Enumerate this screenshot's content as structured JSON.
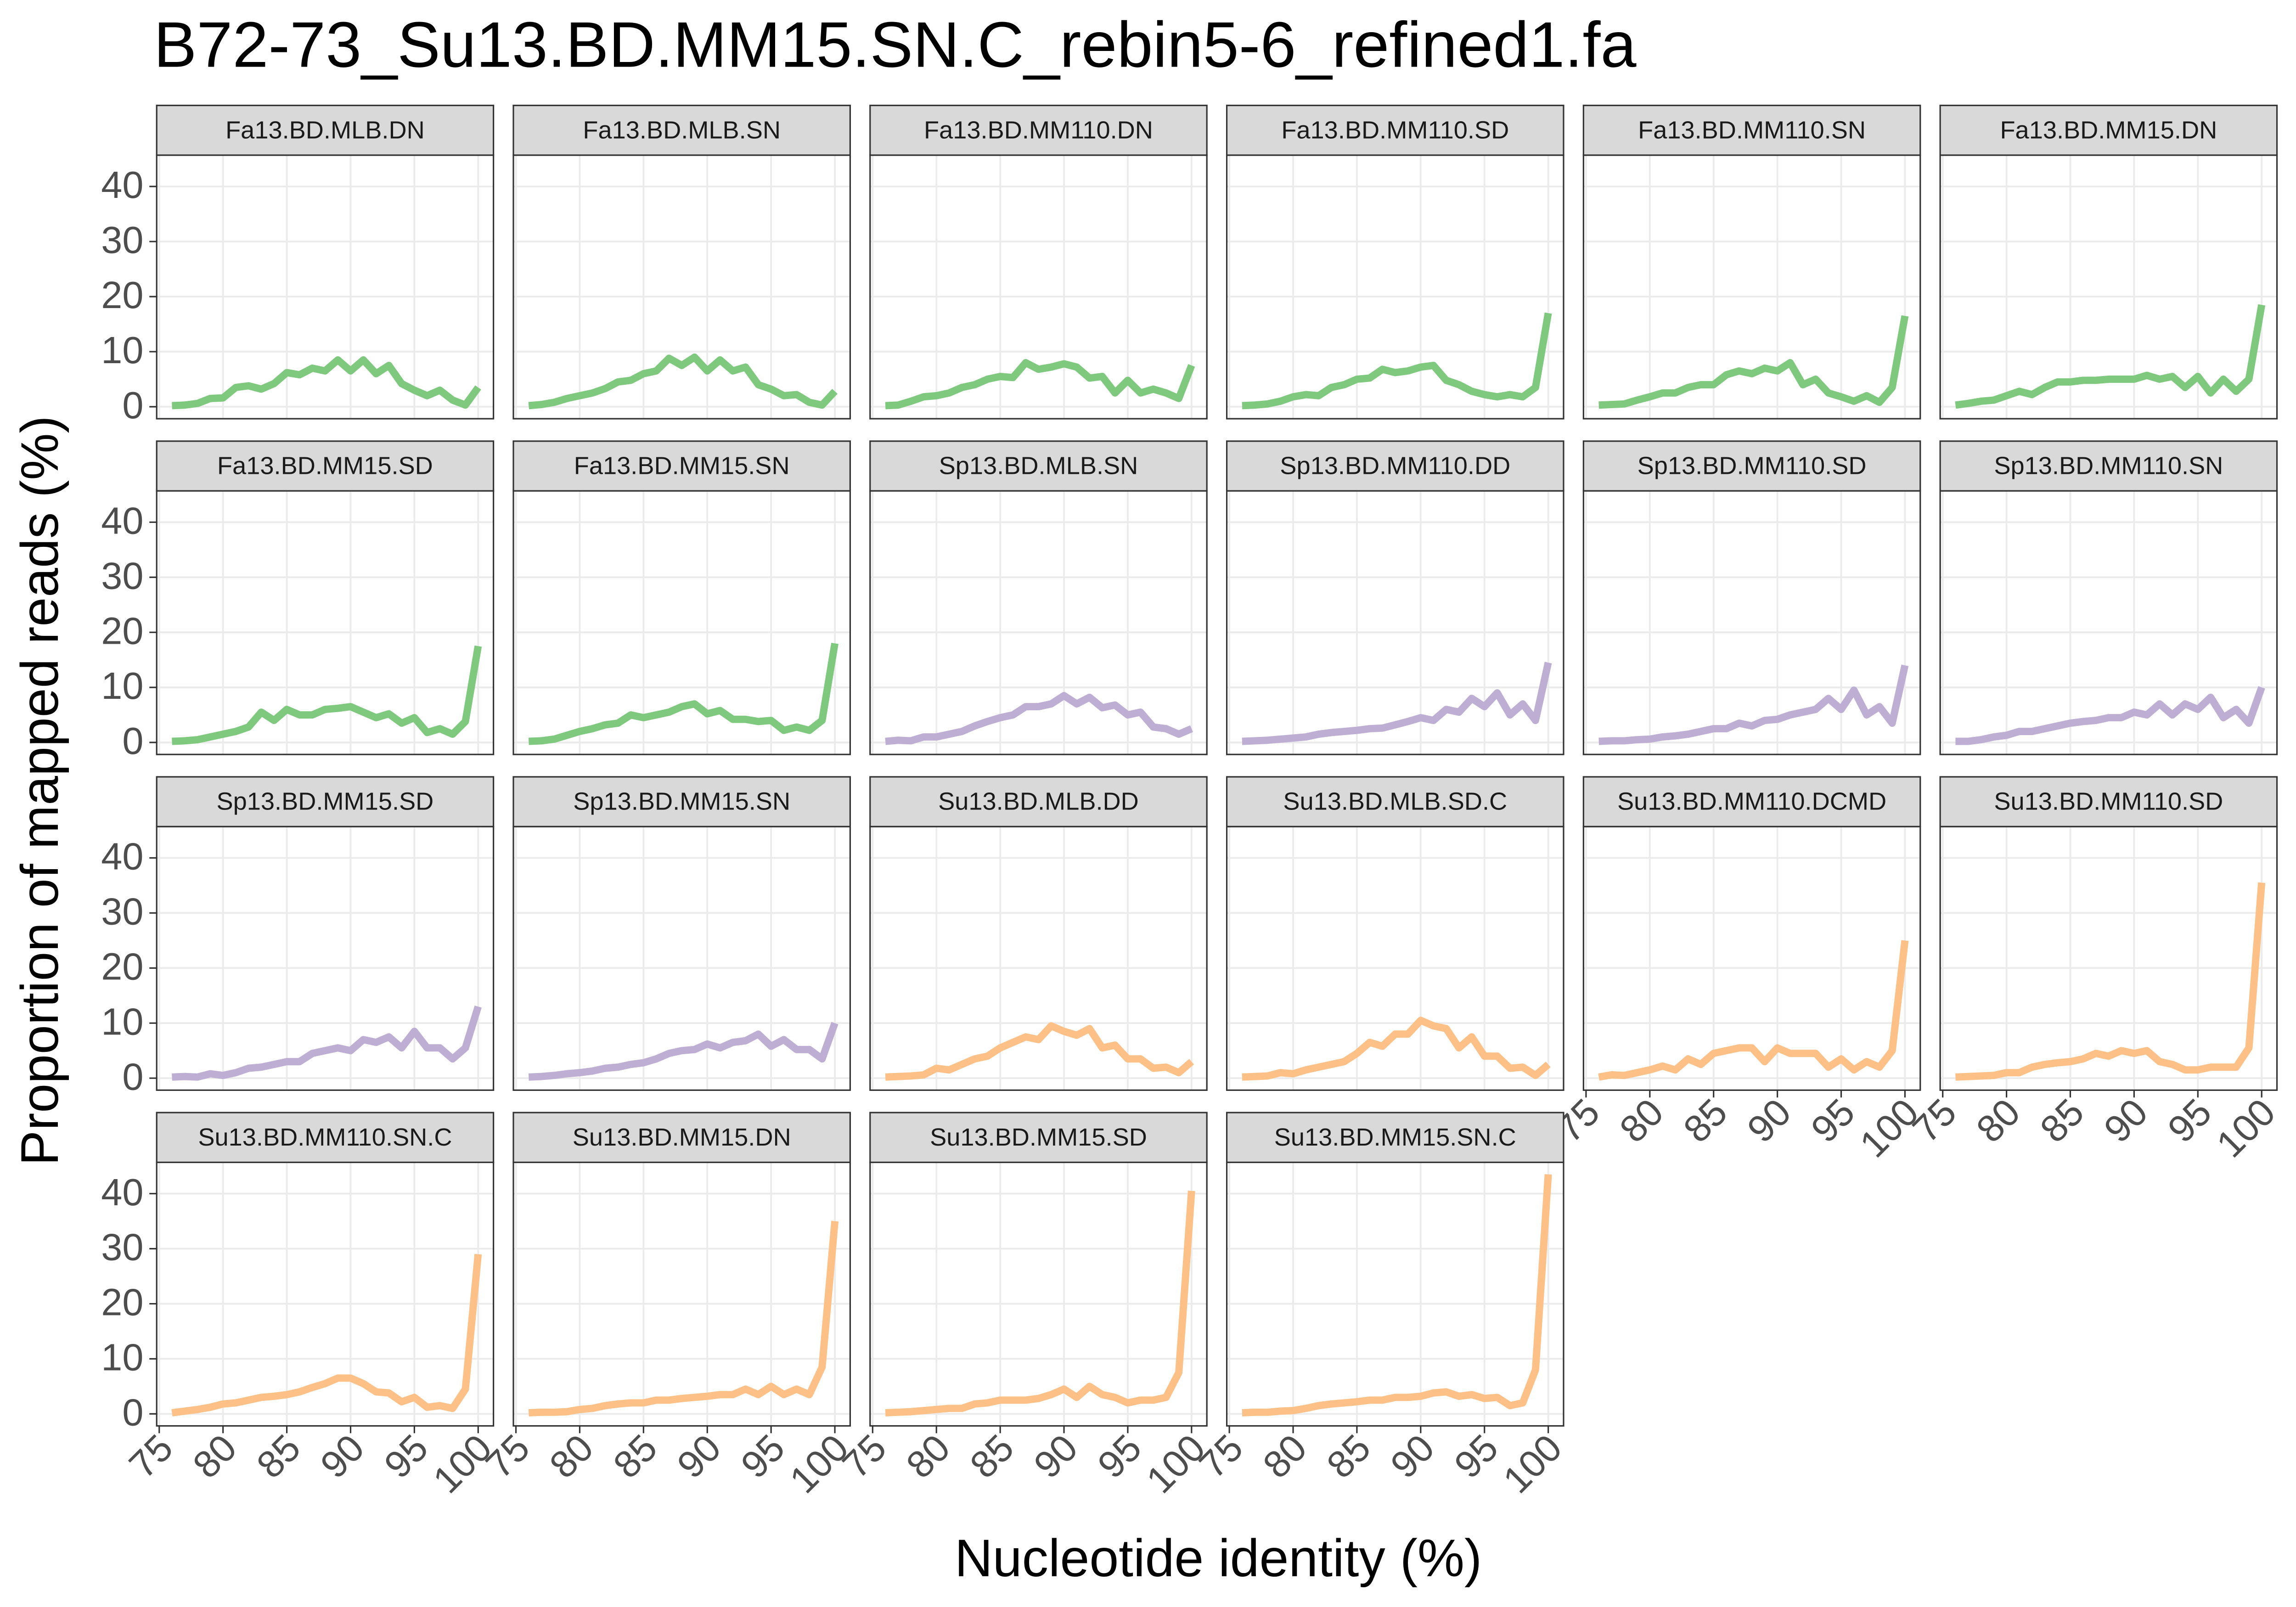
{
  "chart_data": {
    "type": "line",
    "title": "B72-73_Su13.BD.MM15.SN.C_rebin5-6_refined1.fa",
    "xlabel": "Nucleotide identity (%)",
    "ylabel": "Proportion of mapped reads (%)",
    "x": [
      76,
      77,
      78,
      79,
      80,
      81,
      82,
      83,
      84,
      85,
      86,
      87,
      88,
      89,
      90,
      91,
      92,
      93,
      94,
      95,
      96,
      97,
      98,
      99,
      100
    ],
    "xlim": [
      74.8,
      101.2
    ],
    "xticks": [
      75,
      80,
      85,
      90,
      95,
      100
    ],
    "ylim": [
      -2.18,
      45.68
    ],
    "yticks": [
      0,
      10,
      20,
      30,
      40
    ],
    "grid": true,
    "series": [
      {
        "name": "Fa13.BD.MLB.DN",
        "color": "#7fc97f",
        "values": [
          0.2,
          0.3,
          0.6,
          1.5,
          1.6,
          3.5,
          3.8,
          3.2,
          4.2,
          6.2,
          5.8,
          7,
          6.5,
          8.5,
          6.5,
          8.5,
          6,
          7.5,
          4.2,
          3,
          2,
          3,
          1.2,
          0.3,
          3.5
        ]
      },
      {
        "name": "Fa13.BD.MLB.SN",
        "color": "#7fc97f",
        "values": [
          0.2,
          0.4,
          0.8,
          1.5,
          2,
          2.5,
          3.3,
          4.5,
          4.8,
          6,
          6.5,
          8.8,
          7.5,
          9,
          6.5,
          8.5,
          6.5,
          7.2,
          4,
          3.2,
          2,
          2.2,
          0.8,
          0.3,
          2.8
        ]
      },
      {
        "name": "Fa13.BD.MM110.DN",
        "color": "#7fc97f",
        "values": [
          0.2,
          0.3,
          1,
          1.8,
          2,
          2.5,
          3.5,
          4,
          5,
          5.5,
          5.3,
          8,
          6.8,
          7.2,
          7.8,
          7.2,
          5.2,
          5.5,
          2.5,
          4.8,
          2.5,
          3.2,
          2.5,
          1.5,
          7.5
        ]
      },
      {
        "name": "Fa13.BD.MM110.SD",
        "color": "#7fc97f",
        "values": [
          0.2,
          0.3,
          0.5,
          1,
          1.8,
          2.2,
          2,
          3.5,
          4,
          5,
          5.2,
          6.8,
          6.2,
          6.5,
          7.2,
          7.5,
          4.8,
          4,
          2.8,
          2.2,
          1.8,
          2.2,
          1.8,
          3.5,
          17
        ]
      },
      {
        "name": "Fa13.BD.MM110.SN",
        "color": "#7fc97f",
        "values": [
          0.3,
          0.4,
          0.5,
          1.2,
          1.8,
          2.5,
          2.5,
          3.5,
          4,
          4,
          5.8,
          6.5,
          6,
          7,
          6.5,
          8,
          4,
          5,
          2.5,
          1.8,
          1,
          2,
          0.8,
          3.5,
          16.5
        ]
      },
      {
        "name": "Fa13.BD.MM15.DN",
        "color": "#7fc97f",
        "values": [
          0.3,
          0.6,
          1,
          1.2,
          2,
          2.8,
          2.2,
          3.5,
          4.5,
          4.5,
          4.8,
          4.8,
          5,
          5,
          5,
          5.7,
          5,
          5.5,
          3.5,
          5.5,
          2.5,
          5,
          2.8,
          5,
          18.5
        ]
      },
      {
        "name": "Fa13.BD.MM15.SD",
        "color": "#7fc97f",
        "values": [
          0.2,
          0.3,
          0.5,
          1,
          1.5,
          2,
          2.8,
          5.5,
          4,
          6,
          5,
          5,
          6,
          6.2,
          6.5,
          5.5,
          4.5,
          5.2,
          3.5,
          4.5,
          1.8,
          2.5,
          1.5,
          3.8,
          17.5
        ]
      },
      {
        "name": "Fa13.BD.MM15.SN",
        "color": "#7fc97f",
        "values": [
          0.2,
          0.3,
          0.6,
          1.3,
          2,
          2.5,
          3.2,
          3.5,
          5,
          4.5,
          5,
          5.5,
          6.5,
          7,
          5.2,
          5.8,
          4.2,
          4.2,
          3.8,
          4,
          2.2,
          2.8,
          2.2,
          4,
          18
        ]
      },
      {
        "name": "Sp13.BD.MLB.SN",
        "color": "#beaed4",
        "values": [
          0.2,
          0.4,
          0.3,
          1,
          1,
          1.5,
          2,
          3,
          3.8,
          4.5,
          5,
          6.5,
          6.5,
          7,
          8.5,
          7,
          8.2,
          6.3,
          6.8,
          5,
          5.5,
          2.8,
          2.5,
          1.5,
          2.5
        ]
      },
      {
        "name": "Sp13.BD.MM110.DD",
        "color": "#beaed4",
        "values": [
          0.2,
          0.3,
          0.4,
          0.6,
          0.8,
          1,
          1.5,
          1.8,
          2,
          2.2,
          2.5,
          2.6,
          3.2,
          3.8,
          4.5,
          4,
          6,
          5.5,
          8,
          6.5,
          9,
          5,
          7,
          4,
          14.5
        ]
      },
      {
        "name": "Sp13.BD.MM110.SD",
        "color": "#beaed4",
        "values": [
          0.2,
          0.3,
          0.3,
          0.5,
          0.6,
          1,
          1.2,
          1.5,
          2,
          2.5,
          2.5,
          3.5,
          3,
          4,
          4.2,
          5,
          5.5,
          6,
          8,
          6,
          9.5,
          5,
          6.5,
          3.5,
          14
        ]
      },
      {
        "name": "Sp13.BD.MM110.SN",
        "color": "#beaed4",
        "values": [
          0.2,
          0.2,
          0.5,
          1,
          1.3,
          2,
          2,
          2.5,
          3,
          3.5,
          3.8,
          4,
          4.5,
          4.5,
          5.5,
          5,
          7,
          5,
          7,
          6,
          8.2,
          4.5,
          6,
          3.5,
          10
        ]
      },
      {
        "name": "Sp13.BD.MM15.SD",
        "color": "#beaed4",
        "values": [
          0.2,
          0.3,
          0.2,
          0.8,
          0.5,
          1,
          1.8,
          2,
          2.5,
          3,
          3,
          4.5,
          5,
          5.5,
          5,
          7,
          6.5,
          7.5,
          5.5,
          8.5,
          5.5,
          5.5,
          3.5,
          5.5,
          13
        ]
      },
      {
        "name": "Sp13.BD.MM15.SN",
        "color": "#beaed4",
        "values": [
          0.2,
          0.3,
          0.5,
          0.8,
          1,
          1.3,
          1.8,
          2,
          2.5,
          2.8,
          3.5,
          4.5,
          5,
          5.2,
          6.2,
          5.5,
          6.5,
          6.8,
          8,
          5.8,
          7,
          5.2,
          5.2,
          3.5,
          10
        ]
      },
      {
        "name": "Su13.BD.MLB.DD",
        "color": "#fdc086",
        "values": [
          0.2,
          0.3,
          0.4,
          0.6,
          1.8,
          1.5,
          2.5,
          3.5,
          4,
          5.5,
          6.5,
          7.5,
          7,
          9.5,
          8.5,
          7.8,
          9,
          5.5,
          6,
          3.5,
          3.5,
          1.8,
          2,
          1,
          3
        ]
      },
      {
        "name": "Su13.BD.MLB.SD.C",
        "color": "#fdc086",
        "values": [
          0.2,
          0.3,
          0.4,
          1,
          0.8,
          1.5,
          2,
          2.5,
          3,
          4.5,
          6.5,
          5.8,
          8,
          8,
          10.5,
          9.5,
          9,
          5.5,
          7.5,
          4,
          4,
          1.8,
          2,
          0.5,
          2.5
        ]
      },
      {
        "name": "Su13.BD.MM110.DCMD",
        "color": "#fdc086",
        "values": [
          0.2,
          0.6,
          0.5,
          1,
          1.5,
          2.2,
          1.5,
          3.5,
          2.5,
          4.5,
          5,
          5.5,
          5.5,
          3,
          5.5,
          4.5,
          4.5,
          4.5,
          2,
          3.5,
          1.5,
          3,
          2,
          5,
          25
        ]
      },
      {
        "name": "Su13.BD.MM110.SD",
        "color": "#fdc086",
        "values": [
          0.2,
          0.3,
          0.4,
          0.5,
          1,
          1,
          2,
          2.5,
          2.8,
          3,
          3.5,
          4.5,
          4,
          5,
          4.5,
          5,
          3,
          2.5,
          1.5,
          1.5,
          2,
          2,
          2,
          5.5,
          35.5
        ]
      },
      {
        "name": "Su13.BD.MM110.SN.C",
        "color": "#fdc086",
        "values": [
          0.2,
          0.5,
          0.8,
          1.2,
          1.8,
          2,
          2.5,
          3,
          3.2,
          3.5,
          4,
          4.8,
          5.5,
          6.5,
          6.5,
          5.5,
          4,
          3.8,
          2.2,
          3,
          1.2,
          1.5,
          1,
          4.5,
          29
        ]
      },
      {
        "name": "Su13.BD.MM15.DN",
        "color": "#fdc086",
        "values": [
          0.2,
          0.3,
          0.3,
          0.4,
          0.8,
          1,
          1.5,
          1.8,
          2,
          2,
          2.5,
          2.5,
          2.8,
          3,
          3.2,
          3.5,
          3.5,
          4.5,
          3.5,
          5,
          3.5,
          4.5,
          3.5,
          8.5,
          35
        ]
      },
      {
        "name": "Su13.BD.MM15.SD",
        "color": "#fdc086",
        "values": [
          0.2,
          0.3,
          0.4,
          0.6,
          0.8,
          1,
          1,
          1.8,
          2,
          2.5,
          2.5,
          2.5,
          2.8,
          3.5,
          4.5,
          3,
          5,
          3.5,
          3,
          2,
          2.5,
          2.5,
          3,
          7.5,
          40.5
        ]
      },
      {
        "name": "Su13.BD.MM15.SN.C",
        "color": "#fdc086",
        "values": [
          0.2,
          0.3,
          0.3,
          0.5,
          0.6,
          1,
          1.5,
          1.8,
          2,
          2.2,
          2.5,
          2.5,
          3,
          3,
          3.2,
          3.8,
          4,
          3.2,
          3.5,
          2.8,
          3,
          1.5,
          2,
          8,
          43.5
        ]
      }
    ]
  }
}
